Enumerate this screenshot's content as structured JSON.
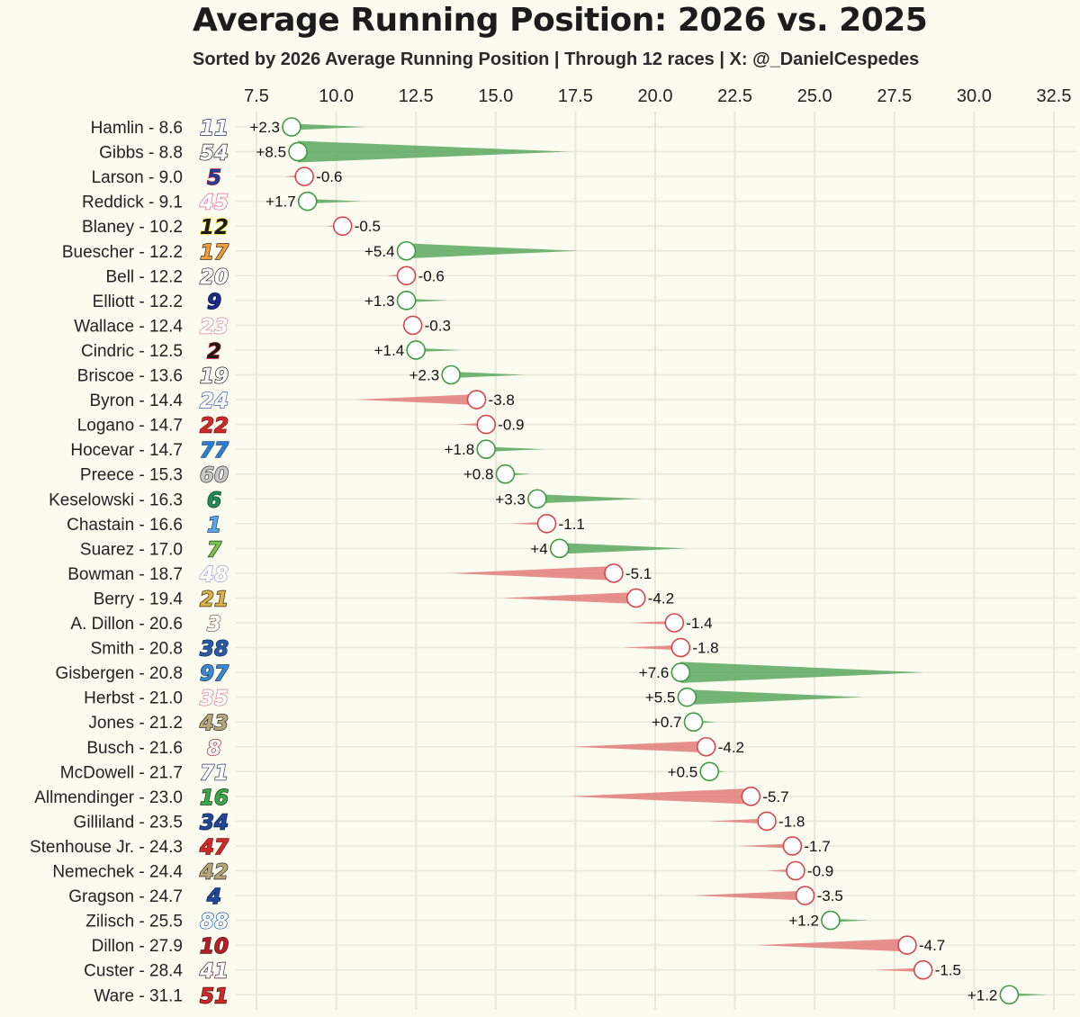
{
  "title": "Average Running Position: 2026 vs. 2025",
  "subtitle": "Sorted by 2026 Average Running Position | Through 12 races | X: @_DanielCespedes",
  "colors": {
    "improved": "#5aa85e",
    "declined": "#e07c78",
    "improved_marker": "#3f9a44",
    "declined_marker": "#d9454c",
    "background": "#fcfbf0",
    "grid": "#e8e7da"
  },
  "chart_data": {
    "type": "bar",
    "title": "Average Running Position: 2026 vs. 2025",
    "subtitle": "Sorted by 2026 Average Running Position | Through 12 races | X: @_DanielCespedes",
    "x_axis": {
      "range": [
        6.5,
        33.2
      ],
      "ticks": [
        "7.5",
        "10.0",
        "12.5",
        "15.0",
        "17.5",
        "20.0",
        "22.5",
        "25.0",
        "27.5",
        "30.0",
        "32.5"
      ],
      "position": "top"
    },
    "grid": true,
    "drivers": [
      {
        "label": "Hamlin -  8.6",
        "number": "11",
        "num_color": "#ffffff",
        "num_stroke": "#1d2b6b",
        "y2026": 8.6,
        "change": "+2.3"
      },
      {
        "label": "Gibbs -  8.8",
        "number": "54",
        "num_color": "#ffffff",
        "num_stroke": "#222222",
        "y2026": 8.8,
        "change": "+8.5"
      },
      {
        "label": "Larson -  9.0",
        "number": "5",
        "num_color": "#1f3c9a",
        "num_stroke": "#b81e2a",
        "y2026": 9.0,
        "change": "-0.6"
      },
      {
        "label": "Reddick -  9.1",
        "number": "45",
        "num_color": "#ffffff",
        "num_stroke": "#e36a8e",
        "y2026": 9.1,
        "change": "+1.7"
      },
      {
        "label": "Blaney - 10.2",
        "number": "12",
        "num_color": "#1a1a1a",
        "num_stroke": "#f4e11a",
        "y2026": 10.2,
        "change": "-0.5"
      },
      {
        "label": "Buescher - 12.2",
        "number": "17",
        "num_color": "#f39a3a",
        "num_stroke": "#3a2a1a",
        "y2026": 12.2,
        "change": "+5.4"
      },
      {
        "label": "Bell - 12.2",
        "number": "20",
        "num_color": "#ffffff",
        "num_stroke": "#2b2b2b",
        "y2026": 12.2,
        "change": "-0.6"
      },
      {
        "label": "Elliott - 12.2",
        "number": "9",
        "num_color": "#1c2a8c",
        "num_stroke": "#0b0b3a",
        "y2026": 12.2,
        "change": "+1.3"
      },
      {
        "label": "Wallace - 12.4",
        "number": "23",
        "num_color": "#ffffff",
        "num_stroke": "#d9869c",
        "y2026": 12.4,
        "change": "-0.3"
      },
      {
        "label": "Cindric - 12.5",
        "number": "2",
        "num_color": "#1a1a1a",
        "num_stroke": "#c8202a",
        "y2026": 12.5,
        "change": "+1.4"
      },
      {
        "label": "Briscoe - 13.6",
        "number": "19",
        "num_color": "#ffffff",
        "num_stroke": "#1a1a1a",
        "y2026": 13.6,
        "change": "+2.3"
      },
      {
        "label": "Byron - 14.4",
        "number": "24",
        "num_color": "#ffffff",
        "num_stroke": "#3a5fb0",
        "y2026": 14.4,
        "change": "-3.8"
      },
      {
        "label": "Logano - 14.7",
        "number": "22",
        "num_color": "#d12a2a",
        "num_stroke": "#7a1010",
        "y2026": 14.7,
        "change": "-0.9"
      },
      {
        "label": "Hocevar - 14.7",
        "number": "77",
        "num_color": "#2f7fd0",
        "num_stroke": "#1a4a8a",
        "y2026": 14.7,
        "change": "+1.8"
      },
      {
        "label": "Preece - 15.3",
        "number": "60",
        "num_color": "#c8c8c8",
        "num_stroke": "#333333",
        "y2026": 15.3,
        "change": "+0.8"
      },
      {
        "label": "Keselowski - 16.3",
        "number": "6",
        "num_color": "#1f8a5a",
        "num_stroke": "#0c3a24",
        "y2026": 16.3,
        "change": "+3.3"
      },
      {
        "label": "Chastain - 16.6",
        "number": "1",
        "num_color": "#5aa6e6",
        "num_stroke": "#1a3a7a",
        "y2026": 16.6,
        "change": "-1.1"
      },
      {
        "label": "Suarez - 17.0",
        "number": "7",
        "num_color": "#7cc24a",
        "num_stroke": "#1a3a1a",
        "y2026": 17.0,
        "change": "+4"
      },
      {
        "label": "Bowman - 18.7",
        "number": "48",
        "num_color": "#ffffff",
        "num_stroke": "#9aa6d6",
        "y2026": 18.7,
        "change": "-5.1"
      },
      {
        "label": "Berry - 19.4",
        "number": "21",
        "num_color": "#d9b24a",
        "num_stroke": "#3a2a0a",
        "y2026": 19.4,
        "change": "-4.2"
      },
      {
        "label": "A. Dillon - 20.6",
        "number": "3",
        "num_color": "#ffffff",
        "num_stroke": "#7a5a4a",
        "y2026": 20.6,
        "change": "-1.4"
      },
      {
        "label": "Smith - 20.8",
        "number": "38",
        "num_color": "#2a5aa8",
        "num_stroke": "#0c2a5a",
        "y2026": 20.8,
        "change": "-1.8"
      },
      {
        "label": "Gisbergen - 20.8",
        "number": "97",
        "num_color": "#3a8ad6",
        "num_stroke": "#0c2a5a",
        "y2026": 20.8,
        "change": "+7.6"
      },
      {
        "label": "Herbst - 21.0",
        "number": "35",
        "num_color": "#ffffff",
        "num_stroke": "#e07a8a",
        "y2026": 21.0,
        "change": "+5.5"
      },
      {
        "label": "Jones - 21.2",
        "number": "43",
        "num_color": "#b8a878",
        "num_stroke": "#2a2a2a",
        "y2026": 21.2,
        "change": "+0.7"
      },
      {
        "label": "Busch - 21.6",
        "number": "8",
        "num_color": "#ffffff",
        "num_stroke": "#a81e2a",
        "y2026": 21.6,
        "change": "-4.2"
      },
      {
        "label": "McDowell - 21.7",
        "number": "71",
        "num_color": "#ffffff",
        "num_stroke": "#2a3a6a",
        "y2026": 21.7,
        "change": "+0.5"
      },
      {
        "label": "Allmendinger - 23.0",
        "number": "16",
        "num_color": "#3aa84a",
        "num_stroke": "#0c3a14",
        "y2026": 23.0,
        "change": "-5.7"
      },
      {
        "label": "Gilliland - 23.5",
        "number": "34",
        "num_color": "#1f4a9a",
        "num_stroke": "#0c1a4a",
        "y2026": 23.5,
        "change": "-1.8"
      },
      {
        "label": "Stenhouse Jr. - 24.3",
        "number": "47",
        "num_color": "#d12a2a",
        "num_stroke": "#6a1010",
        "y2026": 24.3,
        "change": "-1.7"
      },
      {
        "label": "Nemechek - 24.4",
        "number": "42",
        "num_color": "#b8a878",
        "num_stroke": "#2a2a2a",
        "y2026": 24.4,
        "change": "-0.9"
      },
      {
        "label": "Gragson - 24.7",
        "number": "4",
        "num_color": "#1f4a9a",
        "num_stroke": "#0c1a4a",
        "y2026": 24.7,
        "change": "-3.5"
      },
      {
        "label": "Zilisch - 25.5",
        "number": "88",
        "num_color": "#ffffff",
        "num_stroke": "#1a5ab0",
        "y2026": 25.5,
        "change": "+1.2"
      },
      {
        "label": "Dillon - 27.9",
        "number": "10",
        "num_color": "#b81e2a",
        "num_stroke": "#4a0a0a",
        "y2026": 27.9,
        "change": "-4.7"
      },
      {
        "label": "Custer - 28.4",
        "number": "41",
        "num_color": "#ffffff",
        "num_stroke": "#4a1a2a",
        "y2026": 28.4,
        "change": "-1.5"
      },
      {
        "label": "Ware - 31.1",
        "number": "51",
        "num_color": "#d12a2a",
        "num_stroke": "#4a0a0a",
        "y2026": 31.1,
        "change": "+1.2"
      }
    ]
  }
}
